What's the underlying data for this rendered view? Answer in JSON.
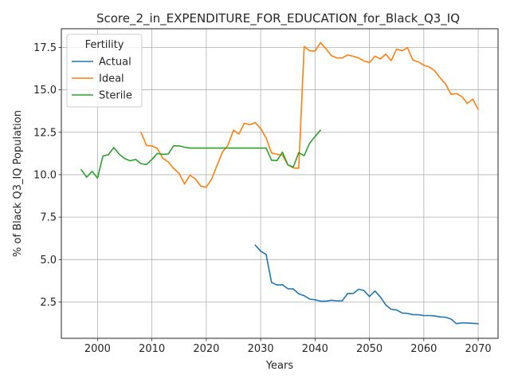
{
  "chart_data": {
    "type": "line",
    "title": "Score_2_in_EXPENDITURE_FOR_EDUCATION_for_Black_Q3_IQ",
    "xlabel": "Years",
    "ylabel": "% of Black Q3_IQ Population",
    "xlim": [
      1993.35,
      2073.65
    ],
    "ylim": [
      0.36,
      18.6
    ],
    "xticks": [
      2000,
      2010,
      2020,
      2030,
      2040,
      2050,
      2060,
      2070
    ],
    "xtick_labels": [
      "2000",
      "2010",
      "2020",
      "2030",
      "2040",
      "2050",
      "2060",
      "2070"
    ],
    "yticks": [
      2.5,
      5.0,
      7.5,
      10.0,
      12.5,
      15.0,
      17.5
    ],
    "ytick_labels": [
      "2.5",
      "5.0",
      "7.5",
      "10.0",
      "12.5",
      "15.0",
      "17.5"
    ],
    "grid": true,
    "legend": {
      "title": "Fertility",
      "placement": "top-left"
    },
    "series": [
      {
        "name": "Actual",
        "color": "#1f77b4",
        "x": [
          2029,
          2030,
          2031,
          2032,
          2033,
          2034,
          2035,
          2036,
          2037,
          2038,
          2039,
          2040,
          2041,
          2042,
          2043,
          2044,
          2045,
          2046,
          2047,
          2048,
          2049,
          2050,
          2051,
          2052,
          2053,
          2054,
          2055,
          2056,
          2057,
          2058,
          2059,
          2060,
          2061,
          2062,
          2063,
          2064,
          2065,
          2066,
          2067,
          2068,
          2069,
          2070
        ],
        "y": [
          5.85,
          5.5,
          5.3,
          3.65,
          3.5,
          3.52,
          3.28,
          3.27,
          2.98,
          2.87,
          2.67,
          2.63,
          2.55,
          2.55,
          2.6,
          2.57,
          2.57,
          3.0,
          3.0,
          3.25,
          3.18,
          2.82,
          3.15,
          2.8,
          2.33,
          2.07,
          2.03,
          1.85,
          1.83,
          1.75,
          1.75,
          1.7,
          1.7,
          1.68,
          1.62,
          1.6,
          1.5,
          1.22,
          1.27,
          1.26,
          1.24,
          1.22
        ]
      },
      {
        "name": "Ideal",
        "color": "#ff7f0e",
        "x": [
          2008,
          2009,
          2010,
          2011,
          2012,
          2013,
          2014,
          2015,
          2016,
          2017,
          2018,
          2019,
          2020,
          2021,
          2022,
          2023,
          2024,
          2025,
          2026,
          2027,
          2028,
          2029,
          2030,
          2031,
          2032,
          2033,
          2034,
          2035,
          2036,
          2037,
          2038,
          2039,
          2040,
          2041,
          2042,
          2043,
          2044,
          2045,
          2046,
          2047,
          2048,
          2049,
          2050,
          2051,
          2052,
          2053,
          2054,
          2055,
          2056,
          2057,
          2058,
          2059,
          2060,
          2061,
          2062,
          2063,
          2064,
          2065,
          2066,
          2067,
          2068,
          2069,
          2070
        ],
        "y": [
          12.5,
          11.72,
          11.7,
          11.55,
          10.97,
          10.75,
          10.37,
          10.08,
          9.45,
          9.97,
          9.75,
          9.32,
          9.27,
          9.75,
          10.57,
          11.35,
          11.75,
          12.62,
          12.4,
          13.03,
          12.95,
          13.07,
          12.72,
          12.17,
          11.28,
          11.2,
          11.15,
          10.58,
          10.4,
          10.38,
          17.55,
          17.3,
          17.28,
          17.78,
          17.42,
          17.02,
          16.88,
          16.88,
          17.05,
          16.98,
          16.88,
          16.7,
          16.6,
          16.98,
          16.82,
          17.1,
          16.72,
          17.4,
          17.3,
          17.48,
          16.75,
          16.65,
          16.45,
          16.35,
          16.12,
          15.7,
          15.35,
          14.73,
          14.78,
          14.6,
          14.2,
          14.45,
          13.85
        ]
      },
      {
        "name": "Sterile",
        "color": "#2ca02c",
        "x": [
          1997,
          1998,
          1999,
          2000,
          2001,
          2002,
          2003,
          2004,
          2005,
          2006,
          2007,
          2008,
          2009,
          2010,
          2011,
          2012,
          2013,
          2014,
          2015,
          2016,
          2017,
          2018,
          2019,
          2020,
          2021,
          2022,
          2023,
          2024,
          2025,
          2026,
          2027,
          2028,
          2029,
          2030,
          2031,
          2032,
          2033,
          2034,
          2035,
          2036,
          2037,
          2038,
          2039,
          2040,
          2041
        ],
        "y": [
          10.3,
          9.85,
          10.2,
          9.8,
          11.1,
          11.18,
          11.6,
          11.2,
          10.95,
          10.82,
          10.9,
          10.65,
          10.6,
          10.9,
          11.25,
          11.2,
          11.22,
          11.7,
          11.7,
          11.62,
          11.57,
          11.57,
          11.57,
          11.57,
          11.57,
          11.57,
          11.57,
          11.57,
          11.57,
          11.57,
          11.57,
          11.57,
          11.57,
          11.57,
          11.57,
          10.85,
          10.83,
          11.33,
          10.58,
          10.45,
          11.3,
          11.12,
          11.85,
          12.25,
          12.62
        ]
      }
    ]
  }
}
